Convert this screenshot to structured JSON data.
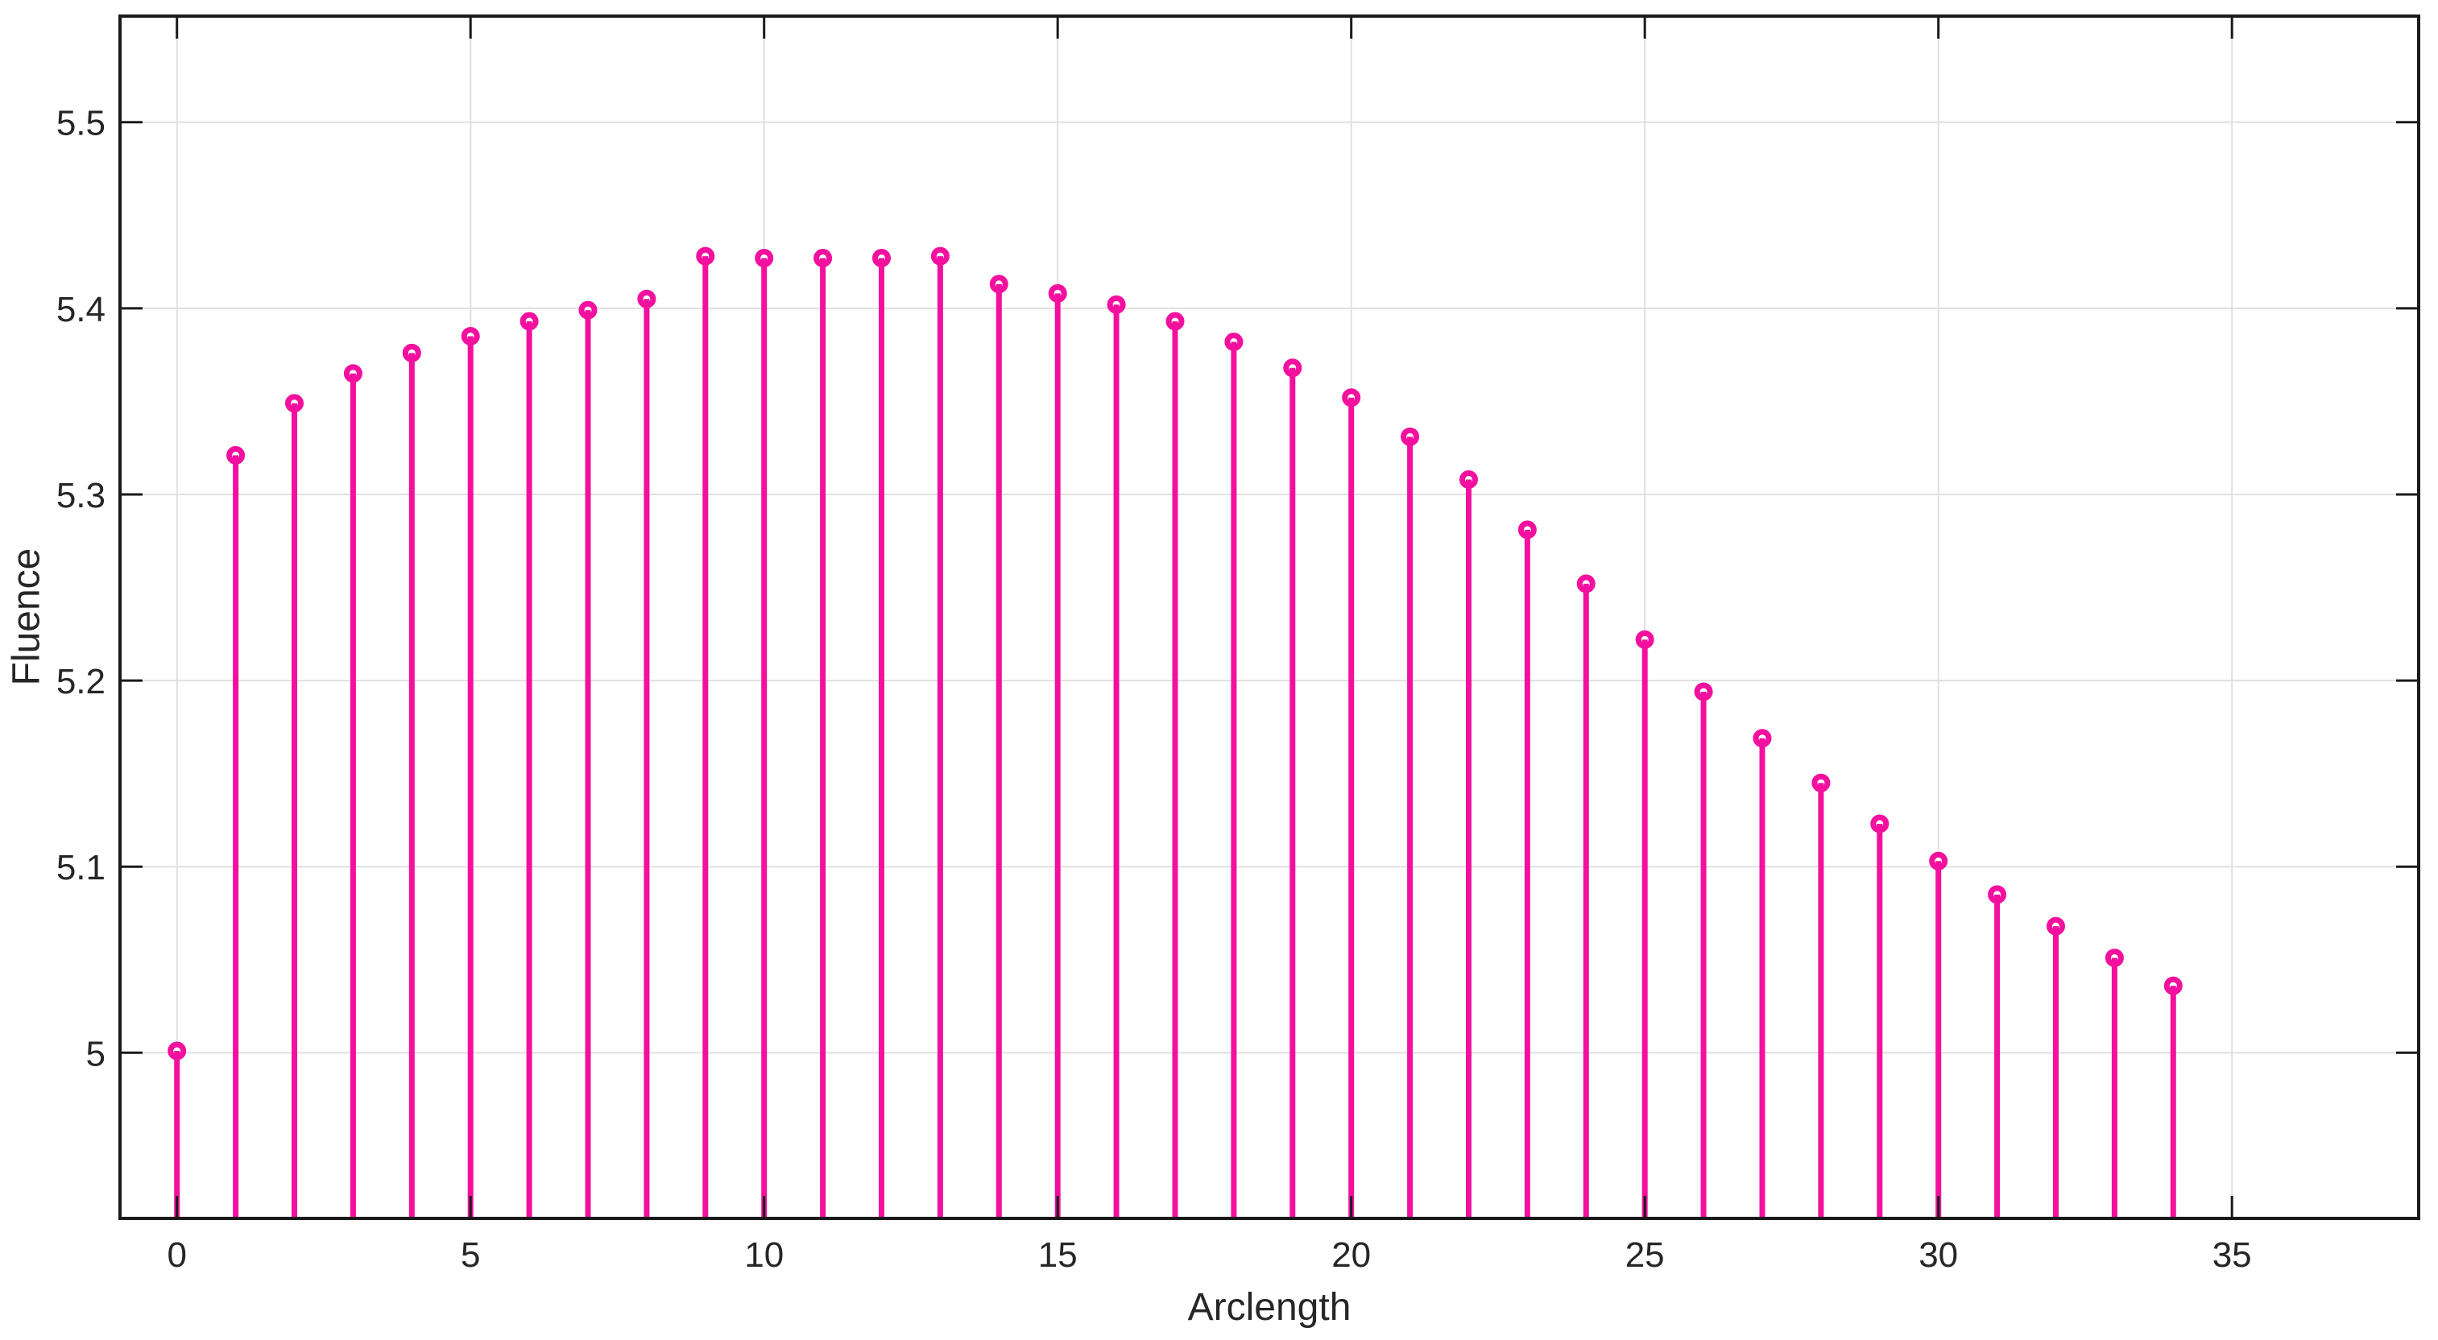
{
  "chart_data": {
    "type": "stem",
    "title": "",
    "xlabel": "Arclength",
    "ylabel": "Fluence",
    "x": [
      0,
      1,
      2,
      3,
      4,
      5,
      6,
      7,
      8,
      9,
      10,
      11,
      12,
      13,
      14,
      15,
      16,
      17,
      18,
      19,
      20,
      21,
      22,
      23,
      24,
      25,
      26,
      27,
      28,
      29,
      30,
      31,
      32,
      33,
      34
    ],
    "y": [
      5.001,
      5.321,
      5.349,
      5.365,
      5.376,
      5.385,
      5.393,
      5.399,
      5.405,
      5.428,
      5.427,
      5.427,
      5.427,
      5.428,
      5.413,
      5.408,
      5.402,
      5.393,
      5.382,
      5.368,
      5.352,
      5.331,
      5.308,
      5.281,
      5.252,
      5.222,
      5.194,
      5.169,
      5.145,
      5.123,
      5.103,
      5.085,
      5.068,
      5.051,
      5.036
    ],
    "xticks": [
      0,
      5,
      10,
      15,
      20,
      25,
      30,
      35
    ],
    "yticks": [
      5,
      5.1,
      5.2,
      5.3,
      5.4,
      5.5
    ],
    "xlim": [
      -0.97,
      38.18
    ],
    "ylim": [
      4.911,
      5.557
    ],
    "grid": true,
    "legend": null,
    "marker": "o",
    "colors": {
      "stem": "#F3109E",
      "marker_fill": "#FFFFFF",
      "grid": "#E0E0E0",
      "axis": "#1A1A1A",
      "text": "#262626",
      "background": "#FFFFFF"
    }
  }
}
